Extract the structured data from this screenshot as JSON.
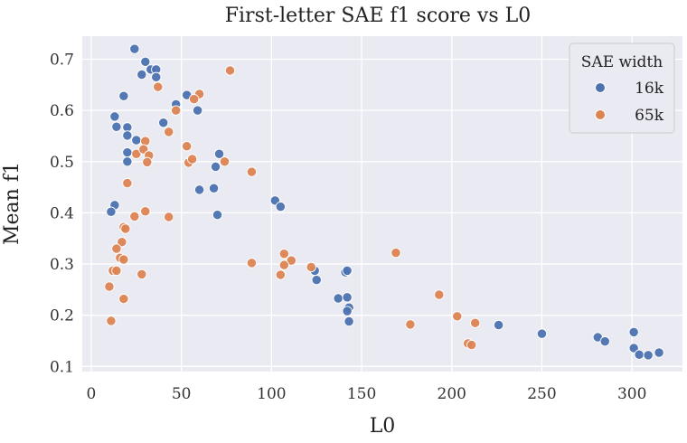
{
  "chart_data": {
    "type": "scatter",
    "title": "First-letter SAE f1 score vs L0",
    "xlabel": "L0",
    "ylabel": "Mean f1",
    "xlim": [
      -5,
      328
    ],
    "ylim": [
      0.09,
      0.745
    ],
    "xticks": [
      0,
      50,
      100,
      150,
      200,
      250,
      300
    ],
    "yticks": [
      0.1,
      0.2,
      0.3,
      0.4,
      0.5,
      0.6,
      0.7
    ],
    "ytick_labels": [
      "0.1",
      "0.2",
      "0.3",
      "0.4",
      "0.5",
      "0.6",
      "0.7"
    ],
    "grid": true,
    "legend": {
      "title": "SAE width",
      "placement": "top-right"
    },
    "series": [
      {
        "name": "16k",
        "color": "#4c72b0",
        "points": [
          [
            24,
            0.72
          ],
          [
            30,
            0.695
          ],
          [
            33,
            0.68
          ],
          [
            36,
            0.68
          ],
          [
            36,
            0.665
          ],
          [
            28,
            0.67
          ],
          [
            18,
            0.628
          ],
          [
            47,
            0.612
          ],
          [
            53,
            0.63
          ],
          [
            59,
            0.6
          ],
          [
            13,
            0.588
          ],
          [
            14,
            0.568
          ],
          [
            20,
            0.567
          ],
          [
            40,
            0.576
          ],
          [
            20,
            0.551
          ],
          [
            25,
            0.542
          ],
          [
            20,
            0.518
          ],
          [
            20,
            0.5
          ],
          [
            71,
            0.515
          ],
          [
            69,
            0.49
          ],
          [
            60,
            0.445
          ],
          [
            68,
            0.448
          ],
          [
            70,
            0.396
          ],
          [
            102,
            0.424
          ],
          [
            105,
            0.412
          ],
          [
            13,
            0.415
          ],
          [
            11,
            0.402
          ],
          [
            124,
            0.287
          ],
          [
            125,
            0.269
          ],
          [
            141,
            0.284
          ],
          [
            142,
            0.287
          ],
          [
            137,
            0.233
          ],
          [
            142,
            0.235
          ],
          [
            143,
            0.215
          ],
          [
            142,
            0.208
          ],
          [
            143,
            0.188
          ],
          [
            226,
            0.181
          ],
          [
            250,
            0.164
          ],
          [
            281,
            0.157
          ],
          [
            285,
            0.149
          ],
          [
            301,
            0.167
          ],
          [
            301,
            0.136
          ],
          [
            304,
            0.123
          ],
          [
            309,
            0.122
          ],
          [
            315,
            0.127
          ]
        ]
      },
      {
        "name": "65k",
        "color": "#dd8452",
        "points": [
          [
            77,
            0.678
          ],
          [
            60,
            0.632
          ],
          [
            57,
            0.622
          ],
          [
            37,
            0.646
          ],
          [
            47,
            0.6
          ],
          [
            43,
            0.558
          ],
          [
            30,
            0.54
          ],
          [
            53,
            0.53
          ],
          [
            25,
            0.515
          ],
          [
            29,
            0.524
          ],
          [
            32,
            0.512
          ],
          [
            31,
            0.499
          ],
          [
            54,
            0.498
          ],
          [
            56,
            0.505
          ],
          [
            74,
            0.5
          ],
          [
            89,
            0.48
          ],
          [
            20,
            0.458
          ],
          [
            30,
            0.403
          ],
          [
            24,
            0.393
          ],
          [
            43,
            0.392
          ],
          [
            18,
            0.372
          ],
          [
            19,
            0.369
          ],
          [
            17,
            0.343
          ],
          [
            14,
            0.33
          ],
          [
            16,
            0.312
          ],
          [
            18,
            0.309
          ],
          [
            12,
            0.287
          ],
          [
            14,
            0.287
          ],
          [
            10,
            0.256
          ],
          [
            18,
            0.232
          ],
          [
            11,
            0.189
          ],
          [
            28,
            0.28
          ],
          [
            89,
            0.302
          ],
          [
            107,
            0.32
          ],
          [
            111,
            0.307
          ],
          [
            107,
            0.298
          ],
          [
            105,
            0.279
          ],
          [
            122,
            0.294
          ],
          [
            169,
            0.322
          ],
          [
            193,
            0.24
          ],
          [
            203,
            0.198
          ],
          [
            213,
            0.185
          ],
          [
            177,
            0.182
          ],
          [
            209,
            0.145
          ],
          [
            211,
            0.142
          ]
        ]
      }
    ]
  }
}
